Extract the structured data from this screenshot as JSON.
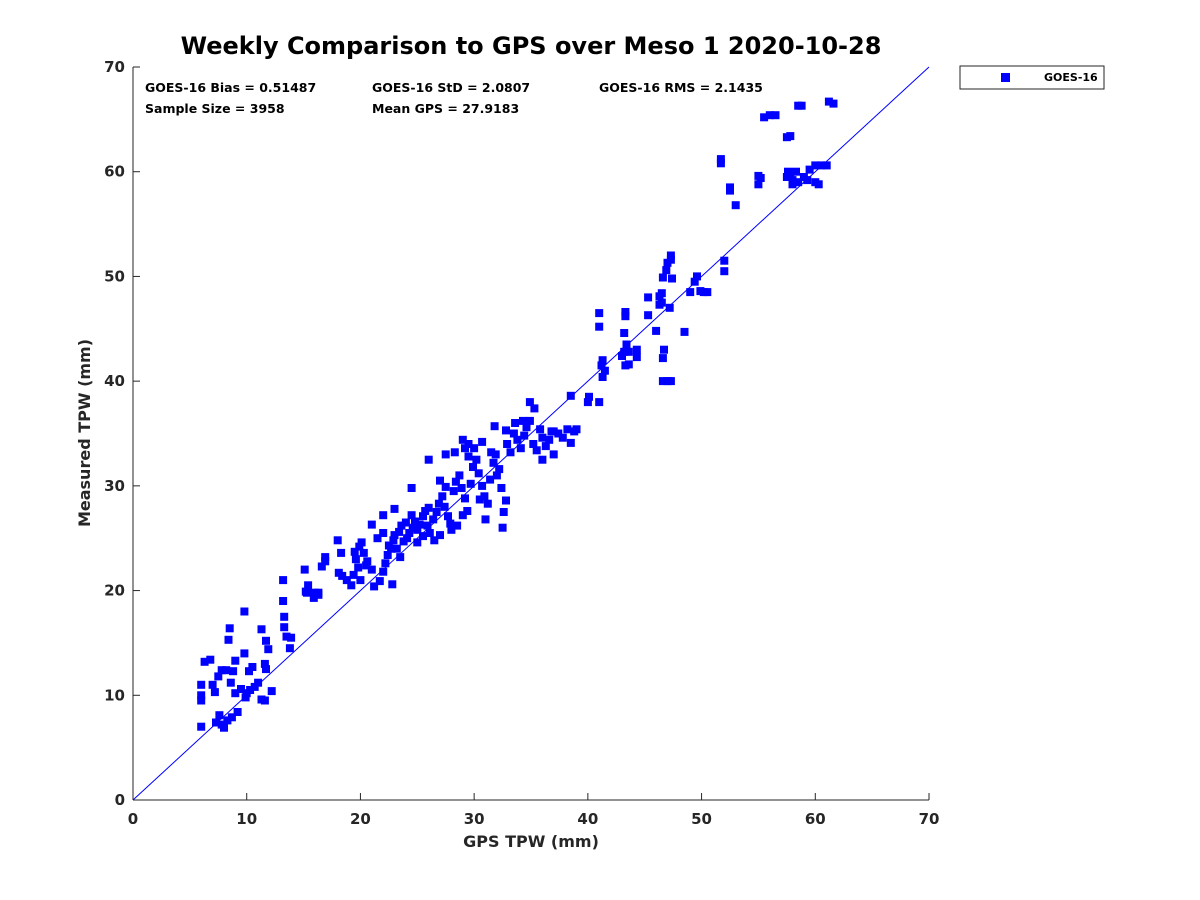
{
  "chart_data": {
    "type": "scatter",
    "title": "Weekly Comparison to GPS over Meso 1 2020-10-28",
    "xlabel": "GPS TPW (mm)",
    "ylabel": "Measured TPW (mm)",
    "xlim": [
      0,
      70
    ],
    "ylim": [
      0,
      70
    ],
    "xticks": [
      0,
      10,
      20,
      30,
      40,
      50,
      60,
      70
    ],
    "yticks": [
      0,
      10,
      20,
      30,
      40,
      50,
      60,
      70
    ],
    "grid": false,
    "legend_position": "outside-top-right",
    "marker_color": "#0000ff",
    "line_color": "#0000ff",
    "reference_line": {
      "from": [
        0,
        0
      ],
      "to": [
        70,
        70
      ]
    },
    "stats": {
      "bias": "GOES-16 Bias = 0.51487",
      "std": "GOES-16 StD = 2.0807",
      "rms": "GOES-16 RMS = 2.1435",
      "sample_size": "Sample Size = 3958",
      "mean_gps": "Mean GPS = 27.9183"
    },
    "series": [
      {
        "name": "GOES-16",
        "points": [
          [
            6.0,
            7.0
          ],
          [
            6.0,
            10.0
          ],
          [
            6.0,
            11.0
          ],
          [
            6.0,
            9.5
          ],
          [
            6.3,
            13.2
          ],
          [
            6.8,
            13.4
          ],
          [
            7.0,
            11.0
          ],
          [
            7.2,
            10.3
          ],
          [
            7.5,
            11.8
          ],
          [
            7.8,
            12.4
          ],
          [
            8.2,
            12.4
          ],
          [
            8.8,
            12.3
          ],
          [
            9.0,
            13.3
          ],
          [
            8.5,
            16.4
          ],
          [
            8.4,
            15.3
          ],
          [
            9.8,
            14.0
          ],
          [
            10.2,
            12.3
          ],
          [
            10.5,
            12.7
          ],
          [
            10.0,
            10.2
          ],
          [
            10.3,
            10.5
          ],
          [
            10.7,
            10.8
          ],
          [
            11.0,
            11.2
          ],
          [
            9.5,
            10.6
          ],
          [
            9.0,
            10.2
          ],
          [
            7.3,
            7.4
          ],
          [
            7.8,
            7.2
          ],
          [
            8.0,
            6.9
          ],
          [
            8.3,
            7.6
          ],
          [
            8.7,
            7.9
          ],
          [
            9.2,
            8.4
          ],
          [
            7.6,
            8.1
          ],
          [
            8.6,
            11.2
          ],
          [
            9.9,
            9.8
          ],
          [
            11.3,
            9.6
          ],
          [
            11.6,
            9.5
          ],
          [
            12.2,
            10.4
          ],
          [
            11.3,
            16.3
          ],
          [
            11.7,
            15.2
          ],
          [
            11.9,
            14.4
          ],
          [
            11.6,
            13.0
          ],
          [
            11.7,
            12.5
          ],
          [
            9.8,
            18.0
          ],
          [
            13.2,
            21.0
          ],
          [
            13.2,
            19.0
          ],
          [
            13.3,
            17.5
          ],
          [
            13.3,
            16.5
          ],
          [
            13.5,
            15.6
          ],
          [
            13.9,
            15.5
          ],
          [
            13.8,
            14.5
          ],
          [
            15.1,
            22.0
          ],
          [
            15.4,
            20.5
          ],
          [
            15.3,
            19.8
          ],
          [
            15.9,
            19.3
          ],
          [
            16.0,
            19.8
          ],
          [
            16.3,
            19.8
          ],
          [
            16.3,
            19.6
          ],
          [
            16.6,
            22.3
          ],
          [
            16.9,
            22.8
          ],
          [
            16.9,
            23.2
          ],
          [
            15.2,
            19.9
          ],
          [
            18.0,
            24.8
          ],
          [
            18.3,
            23.6
          ],
          [
            18.1,
            21.7
          ],
          [
            18.4,
            21.4
          ],
          [
            18.8,
            21.0
          ],
          [
            19.2,
            20.5
          ],
          [
            19.4,
            21.5
          ],
          [
            19.8,
            22.2
          ],
          [
            19.6,
            23.0
          ],
          [
            19.9,
            24.2
          ],
          [
            20.1,
            24.6
          ],
          [
            20.3,
            23.6
          ],
          [
            20.6,
            22.8
          ],
          [
            21.0,
            22.0
          ],
          [
            21.2,
            20.4
          ],
          [
            21.7,
            20.9
          ],
          [
            22.0,
            21.8
          ],
          [
            22.2,
            22.6
          ],
          [
            22.4,
            23.4
          ],
          [
            22.7,
            24.0
          ],
          [
            22.9,
            24.8
          ],
          [
            23.0,
            25.3
          ],
          [
            23.4,
            25.6
          ],
          [
            23.6,
            26.2
          ],
          [
            23.8,
            24.7
          ],
          [
            24.1,
            25.0
          ],
          [
            24.3,
            25.5
          ],
          [
            24.6,
            26.0
          ],
          [
            24.8,
            26.6
          ],
          [
            25.0,
            25.8
          ],
          [
            25.2,
            26.3
          ],
          [
            25.5,
            27.1
          ],
          [
            25.7,
            27.6
          ],
          [
            25.9,
            26.2
          ],
          [
            26.1,
            25.5
          ],
          [
            26.4,
            26.8
          ],
          [
            26.7,
            27.5
          ],
          [
            26.9,
            28.3
          ],
          [
            27.2,
            29.0
          ],
          [
            27.4,
            28.0
          ],
          [
            27.7,
            27.1
          ],
          [
            27.9,
            26.4
          ],
          [
            28.2,
            29.5
          ],
          [
            28.4,
            30.4
          ],
          [
            28.7,
            31.0
          ],
          [
            28.9,
            29.8
          ],
          [
            29.2,
            28.8
          ],
          [
            29.4,
            27.6
          ],
          [
            29.7,
            30.2
          ],
          [
            29.9,
            31.8
          ],
          [
            30.2,
            32.5
          ],
          [
            30.4,
            31.2
          ],
          [
            30.7,
            30.0
          ],
          [
            30.9,
            29.0
          ],
          [
            31.2,
            28.3
          ],
          [
            31.4,
            30.6
          ],
          [
            31.7,
            32.2
          ],
          [
            31.9,
            33.0
          ],
          [
            32.2,
            31.6
          ],
          [
            32.4,
            29.8
          ],
          [
            32.6,
            27.5
          ],
          [
            32.8,
            28.6
          ],
          [
            32.9,
            34.0
          ],
          [
            33.2,
            33.2
          ],
          [
            33.5,
            35.0
          ],
          [
            33.8,
            34.4
          ],
          [
            34.1,
            33.6
          ],
          [
            34.4,
            34.8
          ],
          [
            34.6,
            35.6
          ],
          [
            34.9,
            36.2
          ],
          [
            35.2,
            34.0
          ],
          [
            35.5,
            33.4
          ],
          [
            35.8,
            35.4
          ],
          [
            36.0,
            34.6
          ],
          [
            36.3,
            33.8
          ],
          [
            36.6,
            34.4
          ],
          [
            37.0,
            35.2
          ],
          [
            37.4,
            35.0
          ],
          [
            37.8,
            34.6
          ],
          [
            38.2,
            35.4
          ],
          [
            38.5,
            34.1
          ],
          [
            38.8,
            35.2
          ],
          [
            39.0,
            35.4
          ],
          [
            34.9,
            38.0
          ],
          [
            36.0,
            32.5
          ],
          [
            37.0,
            33.0
          ],
          [
            38.5,
            38.6
          ],
          [
            21.5,
            25.0
          ],
          [
            22.0,
            25.5
          ],
          [
            22.5,
            24.3
          ],
          [
            23.2,
            24.0
          ],
          [
            23.5,
            23.2
          ],
          [
            24.0,
            26.5
          ],
          [
            24.5,
            27.2
          ],
          [
            25.0,
            24.6
          ],
          [
            25.5,
            25.2
          ],
          [
            26.0,
            27.9
          ],
          [
            26.5,
            24.8
          ],
          [
            27.0,
            25.3
          ],
          [
            27.5,
            29.9
          ],
          [
            28.0,
            25.8
          ],
          [
            28.5,
            26.2
          ],
          [
            29.0,
            27.2
          ],
          [
            29.5,
            32.8
          ],
          [
            30.0,
            33.6
          ],
          [
            30.5,
            28.7
          ],
          [
            31.0,
            26.8
          ],
          [
            31.5,
            33.2
          ],
          [
            32.0,
            31.0
          ],
          [
            32.5,
            26.0
          ],
          [
            29.0,
            34.4
          ],
          [
            29.5,
            34.0
          ],
          [
            27.5,
            33.0
          ],
          [
            26.0,
            32.5
          ],
          [
            24.5,
            29.8
          ],
          [
            23.0,
            27.8
          ],
          [
            22.0,
            27.2
          ],
          [
            21.0,
            26.3
          ],
          [
            20.5,
            22.4
          ],
          [
            19.5,
            23.7
          ],
          [
            20.0,
            21.0
          ],
          [
            22.8,
            20.6
          ],
          [
            27.0,
            30.5
          ],
          [
            28.3,
            33.2
          ],
          [
            29.2,
            33.6
          ],
          [
            30.7,
            34.2
          ],
          [
            31.8,
            35.7
          ],
          [
            32.8,
            35.3
          ],
          [
            33.6,
            36.0
          ],
          [
            34.3,
            36.2
          ],
          [
            35.3,
            37.4
          ],
          [
            36.8,
            35.2
          ],
          [
            40.0,
            38.0
          ],
          [
            40.1,
            38.5
          ],
          [
            41.0,
            38.0
          ],
          [
            41.3,
            40.4
          ],
          [
            41.5,
            41.0
          ],
          [
            41.3,
            42.0
          ],
          [
            41.2,
            41.5
          ],
          [
            41.0,
            46.5
          ],
          [
            41.0,
            45.2
          ],
          [
            43.0,
            42.4
          ],
          [
            43.2,
            42.8
          ],
          [
            43.4,
            43.5
          ],
          [
            43.6,
            42.8
          ],
          [
            43.3,
            41.5
          ],
          [
            43.6,
            41.6
          ],
          [
            43.3,
            46.2
          ],
          [
            43.3,
            46.6
          ],
          [
            43.2,
            44.6
          ],
          [
            44.3,
            42.3
          ],
          [
            44.3,
            43.0
          ],
          [
            45.3,
            46.3
          ],
          [
            45.3,
            48.0
          ],
          [
            46.0,
            44.8
          ],
          [
            46.3,
            47.3
          ],
          [
            46.3,
            48.1
          ],
          [
            46.5,
            48.4
          ],
          [
            46.6,
            49.9
          ],
          [
            46.9,
            50.6
          ],
          [
            47.0,
            51.3
          ],
          [
            47.3,
            52.0
          ],
          [
            47.3,
            51.6
          ],
          [
            47.4,
            49.8
          ],
          [
            46.6,
            42.2
          ],
          [
            46.7,
            43.0
          ],
          [
            46.6,
            40.0
          ],
          [
            47.0,
            40.0
          ],
          [
            47.3,
            40.0
          ],
          [
            48.5,
            44.7
          ],
          [
            49.0,
            48.5
          ],
          [
            49.4,
            49.5
          ],
          [
            49.6,
            50.0
          ],
          [
            49.9,
            48.6
          ],
          [
            50.2,
            48.5
          ],
          [
            50.5,
            48.5
          ],
          [
            47.2,
            47.0
          ],
          [
            46.5,
            47.5
          ],
          [
            52.0,
            50.5
          ],
          [
            52.0,
            51.5
          ],
          [
            51.7,
            60.8
          ],
          [
            51.7,
            61.2
          ],
          [
            52.5,
            58.2
          ],
          [
            52.5,
            58.5
          ],
          [
            53.0,
            56.8
          ],
          [
            55.0,
            59.6
          ],
          [
            55.0,
            58.8
          ],
          [
            55.2,
            59.4
          ],
          [
            55.5,
            65.2
          ],
          [
            56.0,
            65.4
          ],
          [
            56.5,
            65.4
          ],
          [
            57.5,
            63.3
          ],
          [
            57.8,
            63.4
          ],
          [
            57.5,
            59.5
          ],
          [
            57.6,
            60.0
          ],
          [
            58.0,
            59.2
          ],
          [
            58.5,
            66.3
          ],
          [
            58.8,
            66.3
          ],
          [
            58.3,
            60.0
          ],
          [
            59.0,
            59.5
          ],
          [
            59.5,
            60.2
          ],
          [
            60.0,
            60.6
          ],
          [
            60.3,
            58.8
          ],
          [
            60.5,
            60.6
          ],
          [
            61.0,
            60.6
          ],
          [
            61.2,
            66.7
          ],
          [
            61.6,
            66.5
          ],
          [
            58.0,
            58.8
          ],
          [
            58.5,
            59.0
          ],
          [
            59.3,
            59.2
          ],
          [
            57.8,
            59.8
          ],
          [
            60.0,
            59.0
          ]
        ]
      }
    ]
  }
}
